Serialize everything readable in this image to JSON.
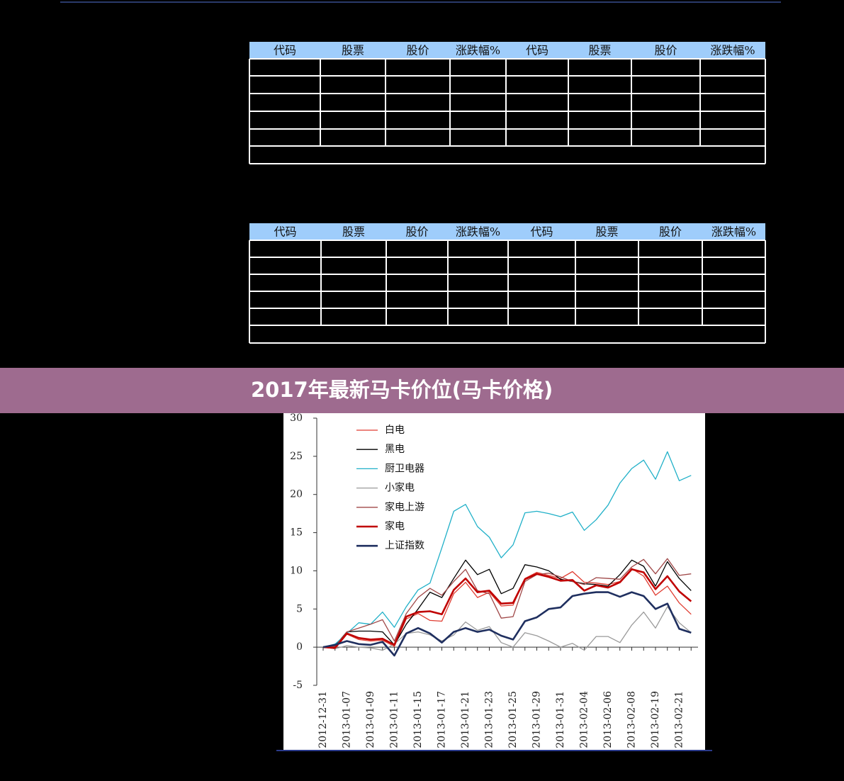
{
  "tables": [
    {
      "headers": [
        "代码",
        "股票",
        "股价",
        "涨跌幅%",
        "代码",
        "股票",
        "股价",
        "涨跌幅%"
      ]
    },
    {
      "headers": [
        "代码",
        "股票",
        "股价",
        "涨跌幅%",
        "代码",
        "股票",
        "股价",
        "涨跌幅%"
      ]
    }
  ],
  "banner": {
    "title": "2017年最新马卡价位(马卡价格)"
  },
  "chart_data": {
    "type": "line",
    "categories": [
      "2012-12-31",
      null,
      "2013-01-07",
      null,
      "2013-01-09",
      null,
      "2013-01-11",
      null,
      "2013-01-15",
      null,
      "2013-01-17",
      null,
      "2013-01-21",
      null,
      "2013-01-23",
      null,
      "2013-01-25",
      null,
      "2013-01-29",
      null,
      "2013-01-31",
      null,
      "2013-02-04",
      null,
      "2013-02-06",
      null,
      "2013-02-08",
      null,
      "2013-02-19",
      null,
      "2013-02-21",
      null
    ],
    "ylim": [
      -5,
      30
    ],
    "yticks": [
      -5,
      0,
      5,
      10,
      15,
      20,
      25,
      30
    ],
    "series": [
      {
        "name": "白电",
        "color": "#e03c31",
        "width": 1.3,
        "values": [
          0,
          -0.2,
          1.7,
          1.0,
          0.8,
          0.9,
          0.1,
          3.7,
          4.4,
          3.5,
          3.4,
          7.0,
          8.5,
          6.5,
          7.2,
          5.4,
          5.5,
          9.0,
          9.8,
          9.4,
          9.0,
          9.9,
          8.5,
          8.4,
          8.2,
          8.6,
          10.3,
          9.3,
          6.8,
          8.0,
          5.8,
          4.3
        ]
      },
      {
        "name": "黑电",
        "color": "#000000",
        "width": 1.3,
        "values": [
          0,
          0.2,
          2.0,
          2.1,
          2.1,
          2.0,
          0.3,
          3.0,
          5.0,
          7.2,
          6.5,
          9.0,
          11.4,
          9.5,
          10.2,
          7.0,
          7.7,
          10.8,
          10.5,
          10.0,
          8.9,
          8.6,
          8.3,
          8.2,
          8.0,
          9.5,
          11.4,
          10.6,
          8.0,
          11.2,
          9.0,
          7.4
        ]
      },
      {
        "name": "厨卫电器",
        "color": "#20b0c8",
        "width": 1.3,
        "values": [
          0,
          0.4,
          1.8,
          3.2,
          3.0,
          4.6,
          2.6,
          5.3,
          7.5,
          8.4,
          13.0,
          17.8,
          18.7,
          15.8,
          14.4,
          11.7,
          13.4,
          17.6,
          17.8,
          17.5,
          17.1,
          17.7,
          15.3,
          16.7,
          18.6,
          21.5,
          23.4,
          24.5,
          22.0,
          25.6,
          21.8,
          22.5
        ]
      },
      {
        "name": "小家电",
        "color": "#9a9a9a",
        "width": 1.3,
        "values": [
          0,
          -0.2,
          0.2,
          0.0,
          -0.1,
          -0.4,
          0.4,
          1.8,
          2.0,
          1.6,
          0.8,
          1.6,
          3.3,
          2.2,
          2.7,
          0.6,
          0.0,
          1.9,
          1.5,
          0.8,
          0.0,
          0.5,
          -0.4,
          1.4,
          1.4,
          0.6,
          2.9,
          4.6,
          2.5,
          5.3,
          3.2,
          1.9
        ]
      },
      {
        "name": "家电上游",
        "color": "#a04848",
        "width": 1.3,
        "values": [
          0,
          0.1,
          2.0,
          2.5,
          3.0,
          3.6,
          0.8,
          4.4,
          6.5,
          7.7,
          6.8,
          8.6,
          10.2,
          7.4,
          7.0,
          3.8,
          4.0,
          8.6,
          9.5,
          9.7,
          9.2,
          8.6,
          8.2,
          9.1,
          9.0,
          8.9,
          10.5,
          11.5,
          9.6,
          11.6,
          9.4,
          9.6
        ]
      },
      {
        "name": "家电",
        "color": "#c00000",
        "width": 2.6,
        "values": [
          0,
          -0.1,
          1.8,
          1.2,
          1.0,
          1.1,
          0.3,
          4.0,
          4.6,
          4.7,
          4.3,
          7.5,
          9.0,
          7.2,
          7.4,
          5.7,
          5.8,
          8.9,
          9.6,
          9.2,
          8.7,
          8.8,
          7.4,
          8.1,
          7.8,
          8.5,
          10.2,
          9.8,
          7.6,
          9.3,
          7.3,
          6.0
        ]
      },
      {
        "name": "上证指数",
        "color": "#1f2f5f",
        "width": 2.6,
        "values": [
          0,
          0.3,
          0.8,
          0.4,
          0.3,
          0.7,
          -1.1,
          1.8,
          2.5,
          1.8,
          0.6,
          2.0,
          2.5,
          2.0,
          2.3,
          1.5,
          1.0,
          3.4,
          3.9,
          5.0,
          5.2,
          6.7,
          7.0,
          7.2,
          7.2,
          6.6,
          7.2,
          6.7,
          5.0,
          5.7,
          2.4,
          1.9
        ]
      }
    ]
  }
}
